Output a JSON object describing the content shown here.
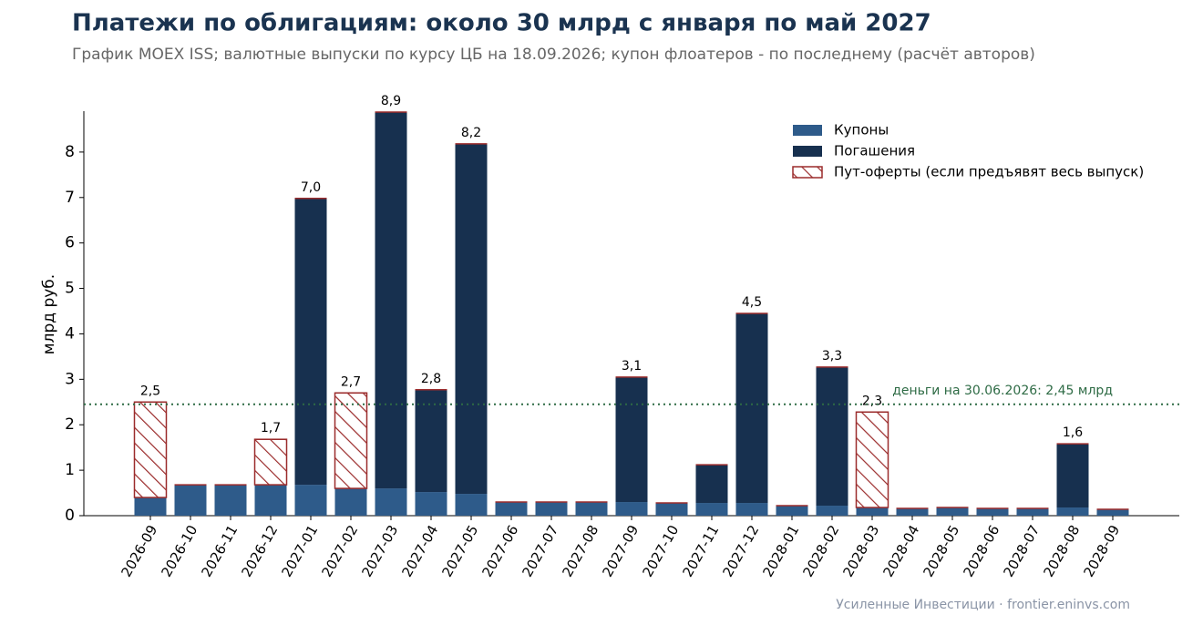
{
  "chart_data": {
    "type": "stacked_bar",
    "title": "Платежи по облигациям: около 30 млрд с января по май 2027",
    "subtitle": "График MOEX ISS; валютные выпуски по курсу ЦБ на 18.09.2026; купон флоатеров - по последнему (расчёт авторов)",
    "y_label": "млрд руб.",
    "footer": "Усиленные Инвестиции · frontier.eninvs.com",
    "categories": [
      "2026-09",
      "2026-10",
      "2026-11",
      "2026-12",
      "2027-01",
      "2027-02",
      "2027-03",
      "2027-04",
      "2027-05",
      "2027-06",
      "2027-07",
      "2027-08",
      "2027-09",
      "2027-10",
      "2027-11",
      "2027-12",
      "2028-01",
      "2028-02",
      "2028-03",
      "2028-04",
      "2028-05",
      "2028-06",
      "2028-07",
      "2028-08",
      "2028-09"
    ],
    "series": [
      {
        "name": "Купоны",
        "color": "#2e5b8a",
        "hatch": false,
        "values": [
          0.4,
          0.68,
          0.68,
          0.68,
          0.68,
          0.6,
          0.6,
          0.52,
          0.48,
          0.3,
          0.3,
          0.3,
          0.3,
          0.28,
          0.28,
          0.28,
          0.22,
          0.22,
          0.18,
          0.16,
          0.18,
          0.16,
          0.16,
          0.18,
          0.14
        ]
      },
      {
        "name": "Погашения",
        "color": "#17304f",
        "hatch": false,
        "values": [
          0,
          0,
          0,
          0,
          6.3,
          0,
          8.28,
          2.25,
          7.7,
          0,
          0,
          0,
          2.75,
          0,
          0.84,
          4.17,
          0,
          3.05,
          0,
          0,
          0,
          0,
          0,
          1.4,
          0
        ]
      },
      {
        "name": "Пут-оферты (если предъявят весь выпуск)",
        "color": "#9b2c2c",
        "hatch": true,
        "values": [
          2.1,
          0,
          0,
          1.0,
          0,
          2.1,
          0,
          0,
          0,
          0,
          0,
          0,
          0,
          0,
          0,
          0,
          0,
          0,
          2.1,
          0,
          0,
          0,
          0,
          0,
          0
        ]
      }
    ],
    "total_labels": [
      "2,5",
      null,
      null,
      "1,7",
      "7,0",
      "2,7",
      "8,9",
      "2,8",
      "8,2",
      null,
      null,
      null,
      "3,1",
      null,
      null,
      "4,5",
      null,
      "3,3",
      "2,3",
      null,
      null,
      null,
      null,
      "1,6",
      null
    ],
    "reference_line": {
      "value": 2.45,
      "label": "деньги на 30.06.2026: 2,45 млрд",
      "color": "#2e6b45"
    },
    "ylim": [
      0,
      8.9
    ],
    "yticks": [
      0,
      1,
      2,
      3,
      4,
      5,
      6,
      7,
      8
    ],
    "legend": "upper right"
  }
}
